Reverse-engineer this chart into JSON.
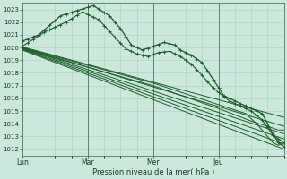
{
  "xlabel": "Pression niveau de la mer( hPa )",
  "ylim": [
    1011.5,
    1023.5
  ],
  "yticks": [
    1012,
    1013,
    1014,
    1015,
    1016,
    1017,
    1018,
    1019,
    1020,
    1021,
    1022,
    1023
  ],
  "xlim": [
    0,
    96
  ],
  "xtick_positions": [
    0,
    24,
    48,
    72
  ],
  "xtick_labels": [
    "Lun",
    "Mar",
    "Mer",
    "Jeu"
  ],
  "bg_color": "#cce8dc",
  "grid_color": "#aacfbe",
  "line_color": "#1a5c28",
  "line_width": 0.7,
  "vline_positions": [
    24,
    48,
    72
  ]
}
